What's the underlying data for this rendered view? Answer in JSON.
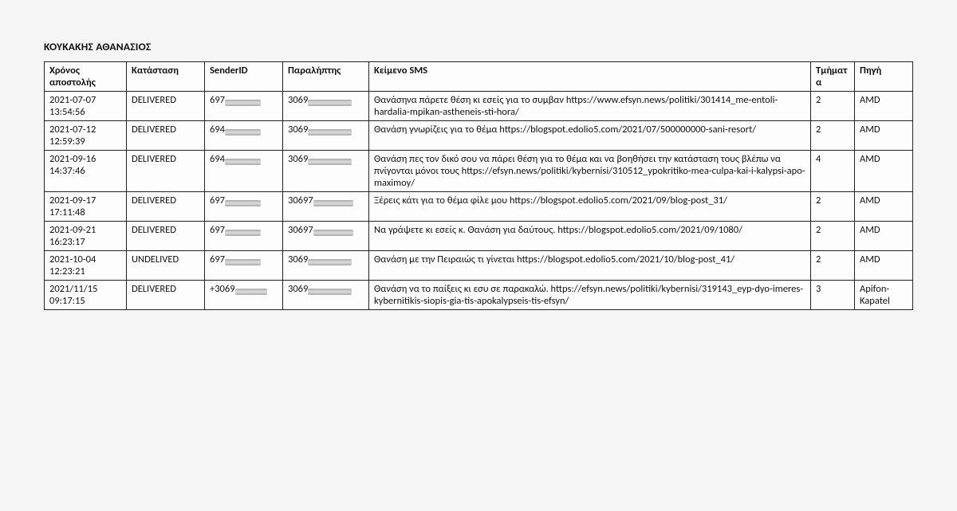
{
  "title": "ΚΟΥΚΑΚΗΣ ΑΘΑΝΑΣΙΟΣ",
  "columns": {
    "time": "Χρόνος αποστολής",
    "status": "Κατάσταση",
    "sender": "SenderID",
    "recipient": "Παραλήπτης",
    "text": "Κείμενο SMS",
    "parts": "Τμήματα",
    "source": "Πηγή"
  },
  "rows": [
    {
      "time": "2021-07-07 13:54:56",
      "status": "DELIVERED",
      "sender_prefix": "697",
      "sender_redact_w": 45,
      "recip_prefix": "3069",
      "recip_redact_w": 55,
      "text": " Θανάσηνα πάρετε θέση κι εσείς για το συμβαν https://www.efsyn.news/politiki/301414_me-entoli-hardalia-mpikan-astheneis-sti-hora/",
      "parts": "2",
      "source": "AMD"
    },
    {
      "time": "2021-07-12 12:59:39",
      "status": "DELIVERED",
      "sender_prefix": "694",
      "sender_redact_w": 45,
      "recip_prefix": "3069",
      "recip_redact_w": 55,
      "text": " Θανάση γνωρίζεις για το θέμα https://blogspot.edolio5.com/2021/07/500000000-sani-resort/",
      "parts": "2",
      "source": "AMD"
    },
    {
      "time": "2021-09-16 14:37:46",
      "status": "DELIVERED",
      "sender_prefix": "694",
      "sender_redact_w": 45,
      "recip_prefix": "3069",
      "recip_redact_w": 55,
      "text": " Θανάση πες τον δικό σου να πάρει θέση για το θέμα και να βοηθήσει την κατάσταση τους βλέπω να πνίγονται μόνοι τους https://efsyn.news/politiki/kybernisi/310512_ypokritiko-mea-culpa-kai-i-kalypsi-apo-maximoy/",
      "parts": "4",
      "source": "AMD"
    },
    {
      "time": "2021-09-17 17:11:48",
      "status": "DELIVERED",
      "sender_prefix": "697",
      "sender_redact_w": 45,
      "recip_prefix": "30697",
      "recip_redact_w": 50,
      "text": " Ξέρεις κάτι για το θέμα φίλε μου https://blogspot.edolio5.com/2021/09/blog-post_31/",
      "parts": "2",
      "source": "AMD"
    },
    {
      "time": "2021-09-21 16:23:17",
      "status": "DELIVERED",
      "sender_prefix": "697",
      "sender_redact_w": 45,
      "recip_prefix": "30697",
      "recip_redact_w": 50,
      "text": " Να γράψετε κι εσείς κ. Θανάση για δαύτους. https://blogspot.edolio5.com/2021/09/1080/",
      "parts": "2",
      "source": "AMD"
    },
    {
      "time": "2021-10-04 12:23:21",
      "status": "UNDELIVED",
      "sender_prefix": "697",
      "sender_redact_w": 45,
      "recip_prefix": "3069",
      "recip_redact_w": 55,
      "text": " Θανάση με την Πειραιώς τι γίνεται https://blogspot.edolio5.com/2021/10/blog-post_41/",
      "parts": "2",
      "source": "AMD"
    },
    {
      "time": "2021/11/15 09:17:15",
      "status": "DELIVERED",
      "sender_prefix": "+3069",
      "sender_redact_w": 40,
      "recip_prefix": "3069",
      "recip_redact_w": 55,
      "text": "Θανάση να το παίξεις κι εσυ σε παρακαλώ. https://efsyn.news/politiki/kybernisi/319143_eyp-dyo-imeres-kybernitikis-siopis-gia-tis-apokalypseis-tis-efsyn/",
      "parts": "3",
      "source": "Apifon-Kapatel"
    }
  ]
}
